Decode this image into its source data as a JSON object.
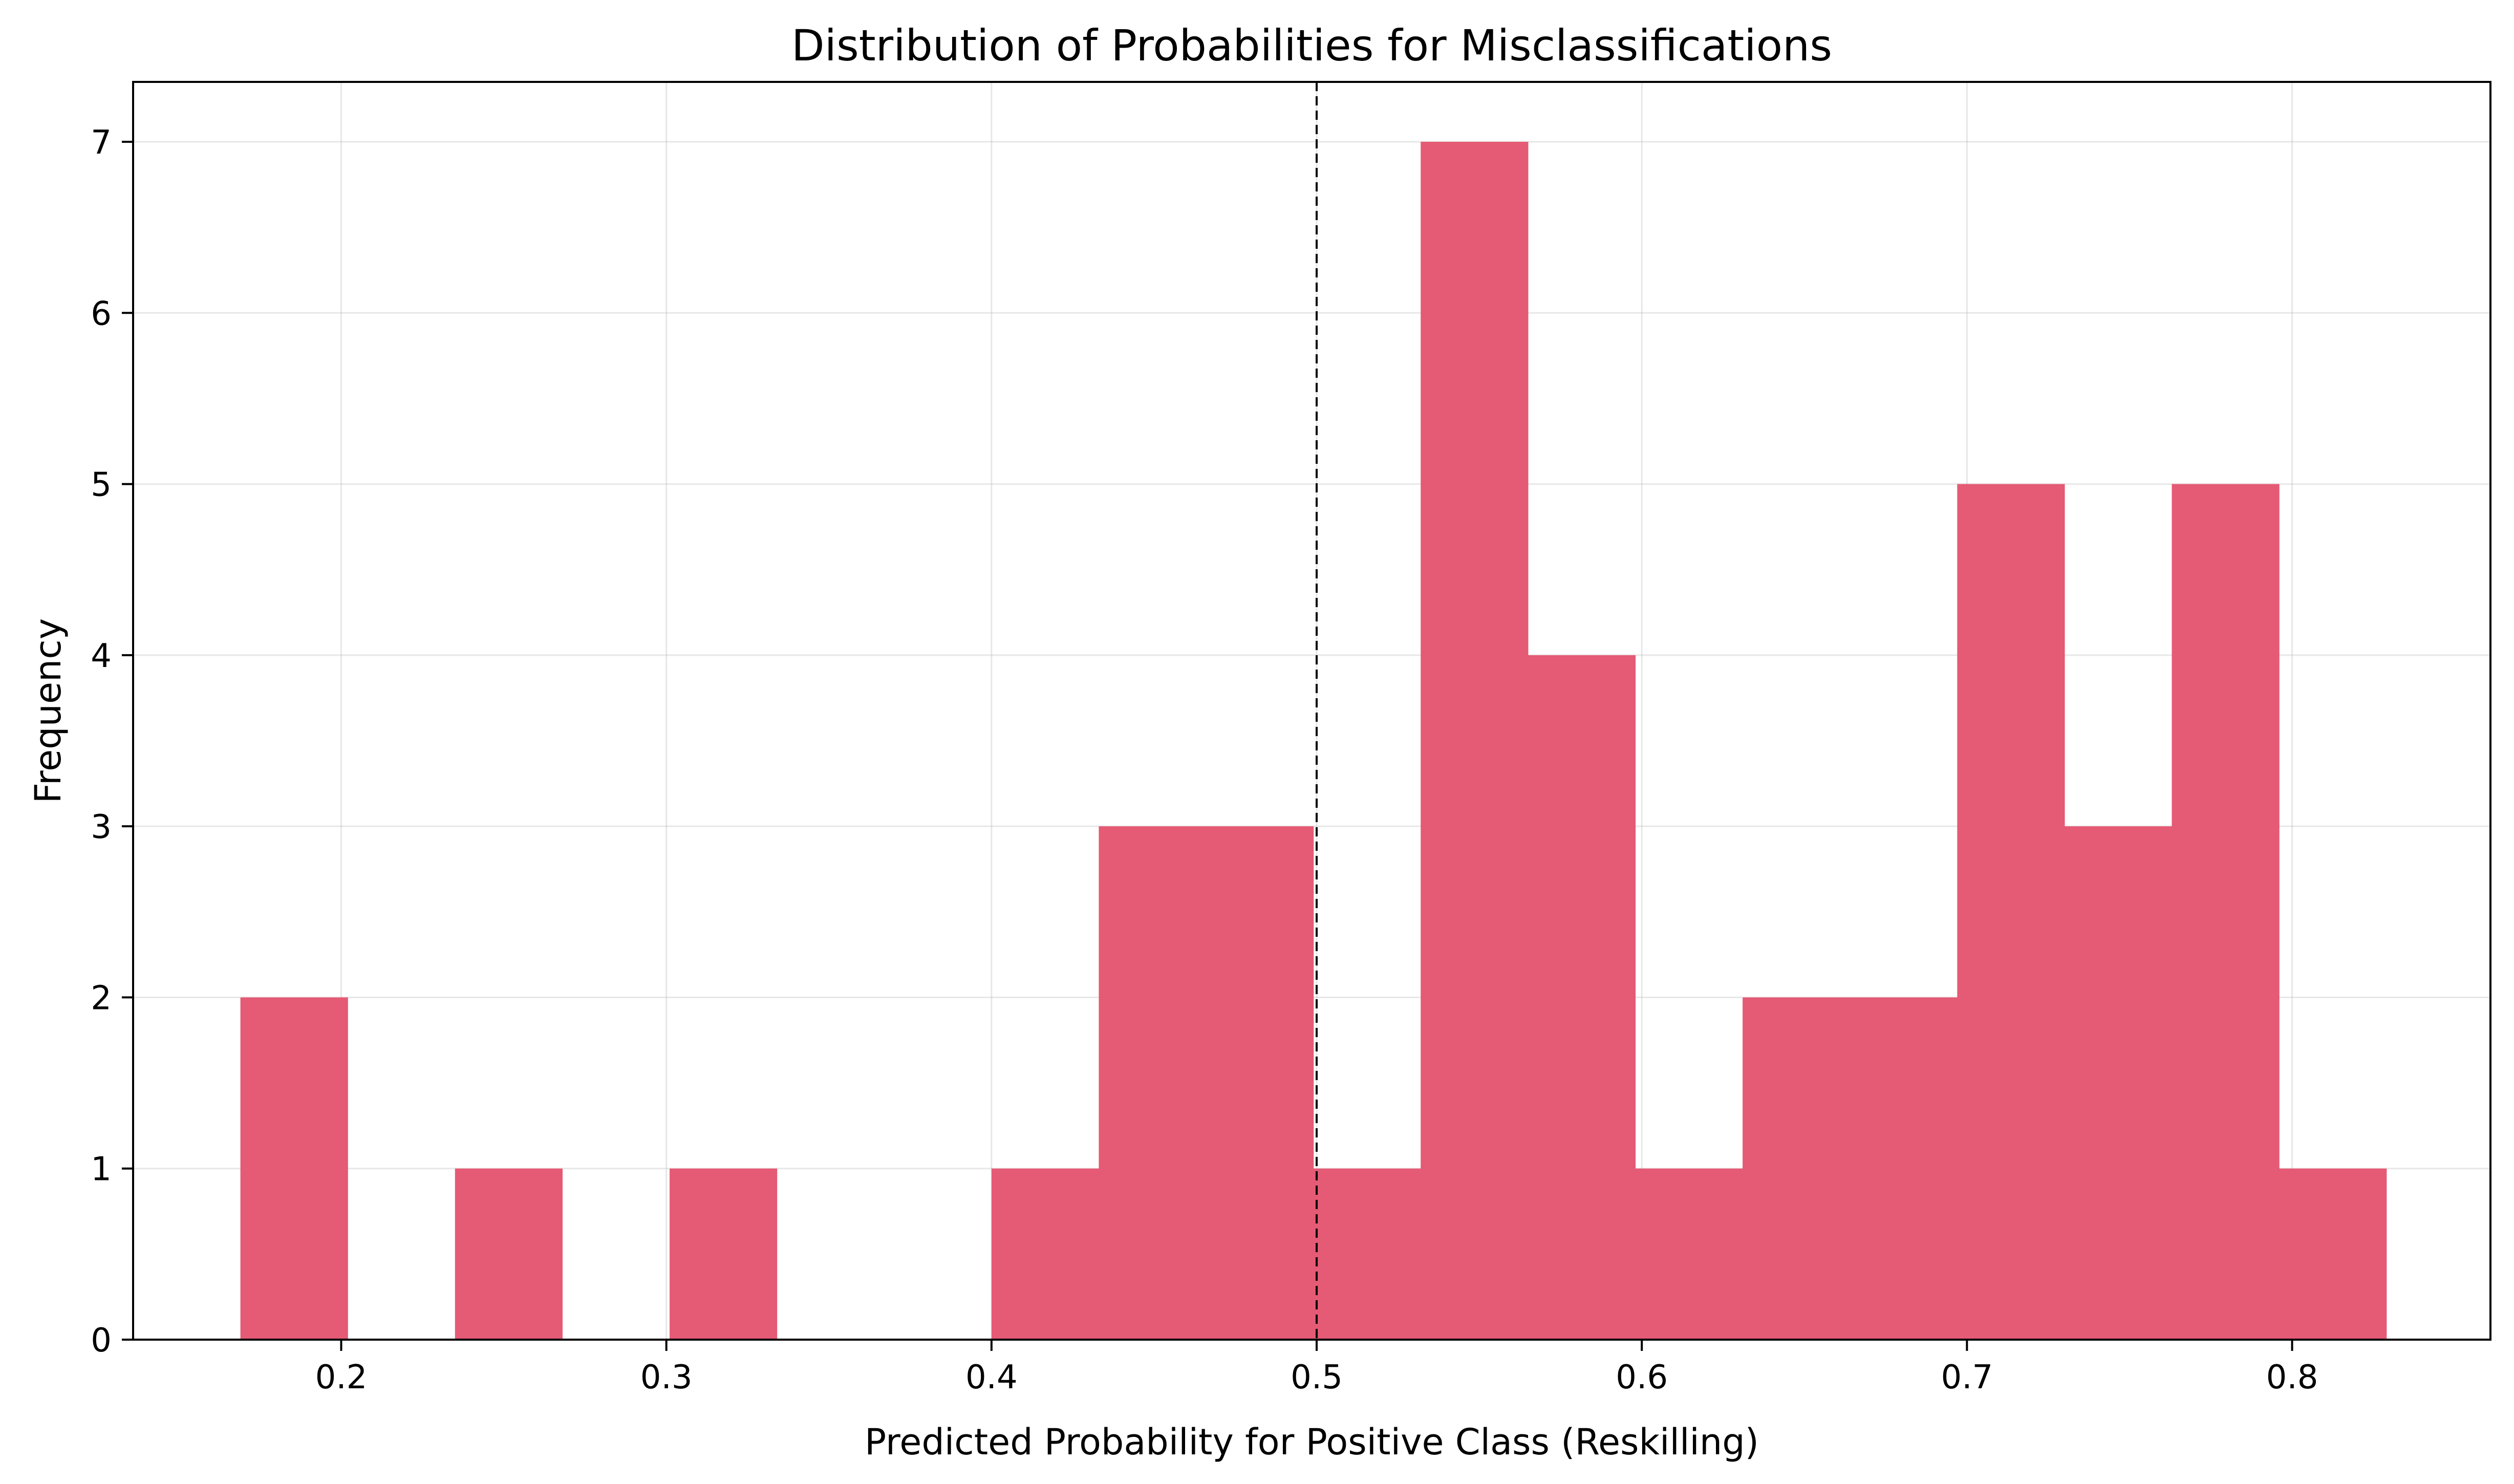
{
  "chart_data": {
    "type": "bar",
    "title": "Distribution of Probabilities for Misclassifications",
    "xlabel": "Predicted Probability for Positive Class (Reskilling)",
    "ylabel": "Frequency",
    "xlim": [
      0.136,
      0.861
    ],
    "ylim": [
      0,
      7.35
    ],
    "xticks": [
      "0.2",
      "0.3",
      "0.4",
      "0.5",
      "0.6",
      "0.7",
      "0.8"
    ],
    "yticks": [
      "0",
      "1",
      "2",
      "3",
      "4",
      "5",
      "6",
      "7"
    ],
    "grid": true,
    "bar_color": "#e55a74",
    "threshold": 0.5,
    "bins": [
      {
        "x0": 0.169,
        "x1": 0.202,
        "count": 2
      },
      {
        "x0": 0.202,
        "x1": 0.235,
        "count": 0
      },
      {
        "x0": 0.235,
        "x1": 0.268,
        "count": 1
      },
      {
        "x0": 0.268,
        "x1": 0.301,
        "count": 0
      },
      {
        "x0": 0.301,
        "x1": 0.334,
        "count": 1
      },
      {
        "x0": 0.334,
        "x1": 0.367,
        "count": 0
      },
      {
        "x0": 0.367,
        "x1": 0.4,
        "count": 0
      },
      {
        "x0": 0.4,
        "x1": 0.433,
        "count": 1
      },
      {
        "x0": 0.433,
        "x1": 0.466,
        "count": 3
      },
      {
        "x0": 0.466,
        "x1": 0.499,
        "count": 3
      },
      {
        "x0": 0.499,
        "x1": 0.532,
        "count": 1
      },
      {
        "x0": 0.532,
        "x1": 0.565,
        "count": 7
      },
      {
        "x0": 0.565,
        "x1": 0.598,
        "count": 4
      },
      {
        "x0": 0.598,
        "x1": 0.631,
        "count": 1
      },
      {
        "x0": 0.631,
        "x1": 0.664,
        "count": 2
      },
      {
        "x0": 0.664,
        "x1": 0.697,
        "count": 2
      },
      {
        "x0": 0.697,
        "x1": 0.73,
        "count": 5
      },
      {
        "x0": 0.73,
        "x1": 0.763,
        "count": 3
      },
      {
        "x0": 0.763,
        "x1": 0.796,
        "count": 5
      },
      {
        "x0": 0.796,
        "x1": 0.829,
        "count": 1
      }
    ]
  }
}
